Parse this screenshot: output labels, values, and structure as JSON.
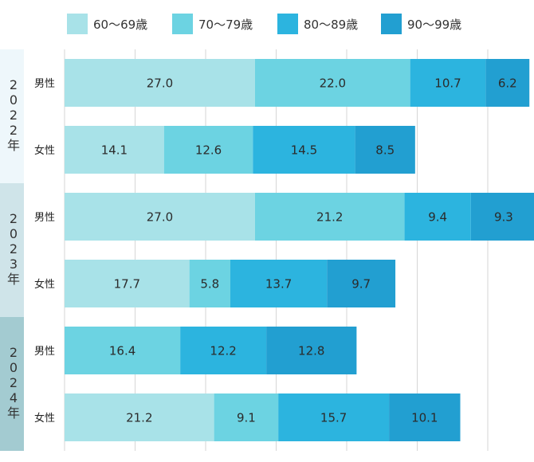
{
  "chart_data": {
    "type": "bar",
    "orientation": "horizontal",
    "stacked": true,
    "title": "",
    "xlabel": "",
    "ylabel": "",
    "legend_position": "top",
    "grid": true,
    "xlim": [
      0,
      66
    ],
    "colors": [
      "#a8e2e8",
      "#6cd3e2",
      "#2cb4df",
      "#229fd1"
    ],
    "year_band_colors": [
      "#eef7fb",
      "#cfe4e9",
      "#a3cbd1"
    ],
    "series": [
      {
        "name": "60～69歳",
        "values": [
          27.0,
          14.1,
          27.0,
          17.7,
          0,
          21.2
        ]
      },
      {
        "name": "70～79歳",
        "values": [
          22.0,
          12.6,
          21.2,
          5.8,
          16.4,
          9.1
        ]
      },
      {
        "name": "80～89歳",
        "values": [
          10.7,
          14.5,
          9.4,
          13.7,
          12.2,
          15.7
        ]
      },
      {
        "name": "90～99歳",
        "values": [
          6.2,
          8.5,
          9.3,
          9.7,
          12.8,
          10.1
        ]
      }
    ],
    "rows": [
      {
        "year": "2022年",
        "gender": "男性"
      },
      {
        "year": "2022年",
        "gender": "女性"
      },
      {
        "year": "2023年",
        "gender": "男性"
      },
      {
        "year": "2023年",
        "gender": "女性"
      },
      {
        "year": "2024年",
        "gender": "男性"
      },
      {
        "year": "2024年",
        "gender": "女性"
      }
    ],
    "years": [
      "2022年",
      "2023年",
      "2024年"
    ],
    "segment_labels": [
      [
        "27.0",
        "22.0",
        "10.7",
        "6.2"
      ],
      [
        "14.1",
        "12.6",
        "14.5",
        "8.5"
      ],
      [
        "27.0",
        "21.2",
        "9.4",
        "9.3"
      ],
      [
        "17.7",
        "5.8",
        "13.7",
        "9.7"
      ],
      [
        "",
        "16.4",
        "12.2",
        "12.8"
      ],
      [
        "21.2",
        "9.1",
        "15.7",
        "10.1"
      ]
    ]
  }
}
